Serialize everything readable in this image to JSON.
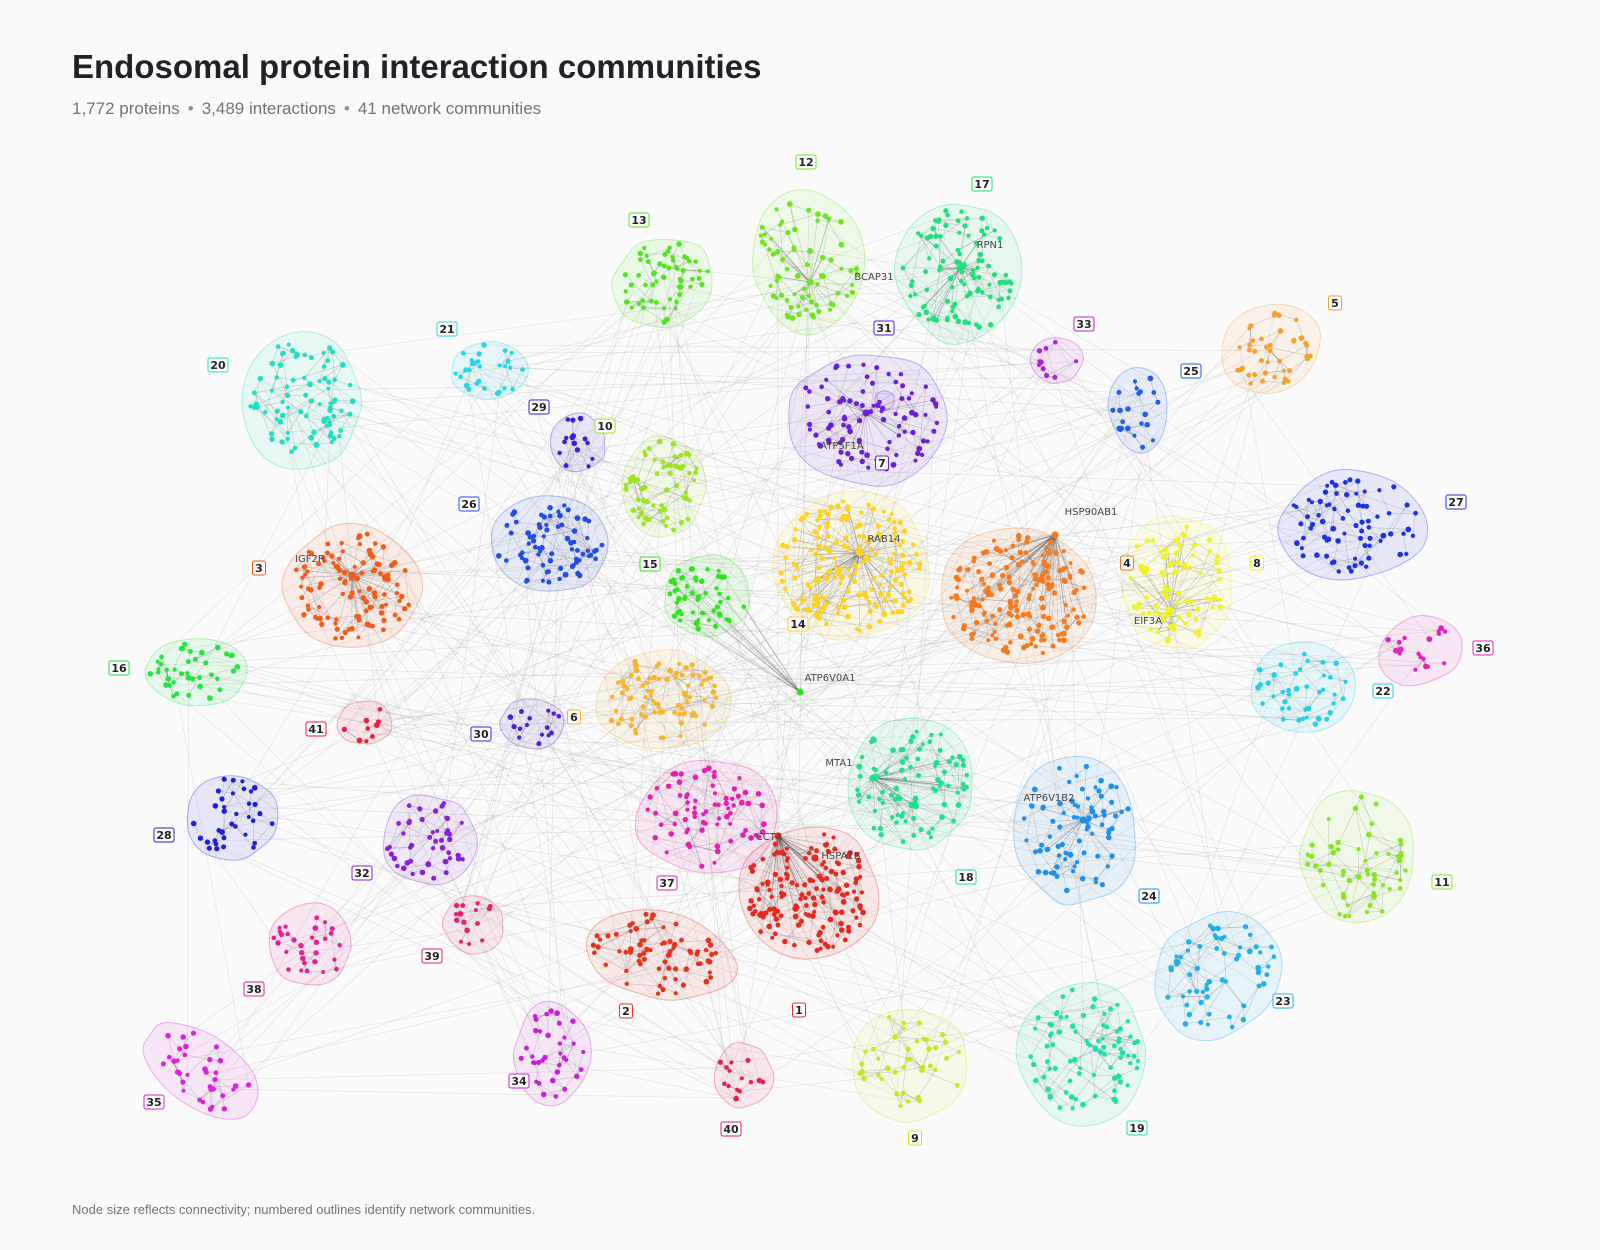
{
  "header": {
    "title": "Endosomal protein interaction communities",
    "stats": [
      "1,772 proteins",
      "3,489 interactions",
      "41 network communities"
    ],
    "separator": "•"
  },
  "footnote": "Node size reflects connectivity; numbered outlines identify network communities.",
  "communities": [
    {
      "id": "1",
      "color": "#e8281e"
    },
    {
      "id": "2",
      "color": "#e8321e"
    },
    {
      "id": "3",
      "color": "#f25c1b"
    },
    {
      "id": "4",
      "color": "#f77a1c"
    },
    {
      "id": "5",
      "color": "#f5a030"
    },
    {
      "id": "6",
      "color": "#f7b52a"
    },
    {
      "id": "7",
      "color": "#6a1fd8"
    },
    {
      "id": "8",
      "color": "#f2f21f"
    },
    {
      "id": "9",
      "color": "#c9e61f"
    },
    {
      "id": "10",
      "color": "#9ae61f"
    },
    {
      "id": "11",
      "color": "#86e61f"
    },
    {
      "id": "12",
      "color": "#6de61f"
    },
    {
      "id": "13",
      "color": "#4fe61f"
    },
    {
      "id": "14",
      "color": "#ffd21f"
    },
    {
      "id": "15",
      "color": "#2ee61f"
    },
    {
      "id": "16",
      "color": "#22e640"
    },
    {
      "id": "17",
      "color": "#1fe07a"
    },
    {
      "id": "18",
      "color": "#1fe08c"
    },
    {
      "id": "19",
      "color": "#1fe0a8"
    },
    {
      "id": "20",
      "color": "#1fe0c2"
    },
    {
      "id": "21",
      "color": "#1fd8e6"
    },
    {
      "id": "22",
      "color": "#1fd2ea"
    },
    {
      "id": "23",
      "color": "#1fb0ea"
    },
    {
      "id": "24",
      "color": "#1f90ea"
    },
    {
      "id": "25",
      "color": "#1f5ee6"
    },
    {
      "id": "26",
      "color": "#1f4ee6"
    },
    {
      "id": "27",
      "color": "#1f32e0"
    },
    {
      "id": "28",
      "color": "#1f1fd8"
    },
    {
      "id": "29",
      "color": "#3a1fd8"
    },
    {
      "id": "30",
      "color": "#4a1fd8"
    },
    {
      "id": "31",
      "color": "#5a1fd8"
    },
    {
      "id": "32",
      "color": "#8a1fd8"
    },
    {
      "id": "33",
      "color": "#b01fd8"
    },
    {
      "id": "34",
      "color": "#c81fd8"
    },
    {
      "id": "35",
      "color": "#e01fe0"
    },
    {
      "id": "36",
      "color": "#e61fb8"
    },
    {
      "id": "37",
      "color": "#e61fb0"
    },
    {
      "id": "38",
      "color": "#e61f96"
    },
    {
      "id": "39",
      "color": "#e61f6e"
    },
    {
      "id": "40",
      "color": "#e61f50"
    },
    {
      "id": "41",
      "color": "#e61f3a"
    }
  ],
  "hub_proteins": [
    "RPN1",
    "BCAP31",
    "ATP5F1A",
    "HSP90AB1",
    "RAB14",
    "IGF2R",
    "EIF3A",
    "ATP6V0A1",
    "MTA1",
    "ATP6V1B2",
    "CCT4",
    "HSPA1B"
  ]
}
